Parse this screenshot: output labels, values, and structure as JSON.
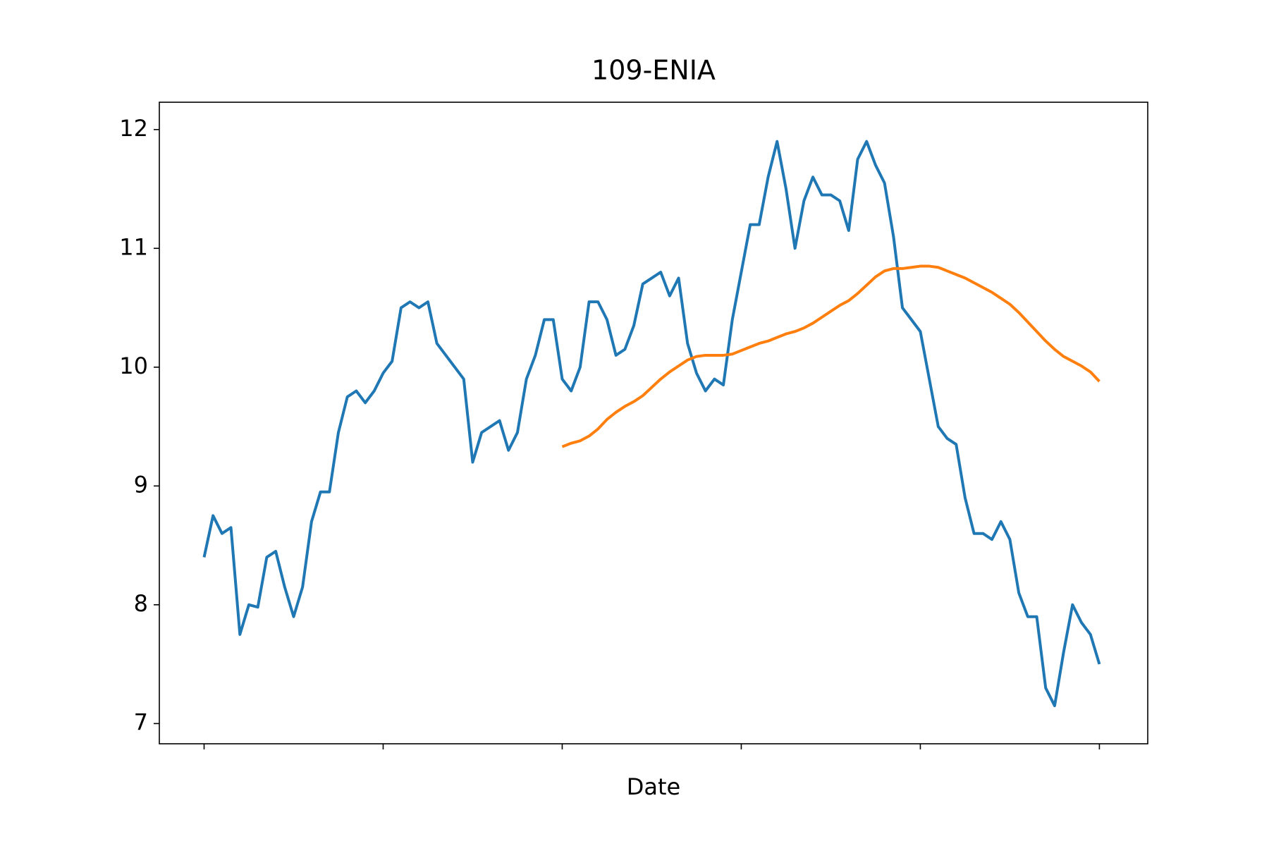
{
  "chart_data": {
    "type": "line",
    "title": "109-ENIA",
    "x_label": "Date",
    "x": [
      0,
      5,
      10,
      15,
      20,
      25,
      30,
      35,
      40,
      45,
      50,
      55,
      60,
      65,
      70,
      75,
      80,
      85,
      90,
      95,
      100,
      105,
      110,
      115,
      120,
      125,
      130,
      135,
      140,
      145,
      150,
      155,
      160,
      165,
      170,
      175,
      180,
      185,
      190,
      195,
      200,
      205,
      210,
      215,
      220,
      225,
      230,
      235,
      240,
      245,
      250,
      255,
      260,
      265,
      270,
      275,
      280,
      285,
      290,
      295,
      300,
      305,
      310,
      315,
      320,
      325,
      330,
      335,
      340,
      345,
      350,
      355,
      360,
      365,
      370,
      375,
      380,
      385,
      390,
      395,
      400,
      405,
      410,
      415,
      420,
      425,
      430,
      435,
      440,
      445,
      450,
      455,
      460,
      465,
      470,
      475,
      480,
      485,
      490,
      495,
      500
    ],
    "series": [
      {
        "color": "#1f77b4",
        "values": [
          8.4,
          8.75,
          8.6,
          8.65,
          7.75,
          8.0,
          7.98,
          8.4,
          8.45,
          8.15,
          7.9,
          8.15,
          8.7,
          8.95,
          8.95,
          9.45,
          9.75,
          9.8,
          9.7,
          9.8,
          9.95,
          10.05,
          10.5,
          10.55,
          10.5,
          10.55,
          10.2,
          10.1,
          10.0,
          9.9,
          9.2,
          9.45,
          9.5,
          9.55,
          9.3,
          9.45,
          9.9,
          10.1,
          10.4,
          10.4,
          9.9,
          9.8,
          10.0,
          10.55,
          10.55,
          10.4,
          10.1,
          10.15,
          10.35,
          10.7,
          10.75,
          10.8,
          10.6,
          10.75,
          10.2,
          9.95,
          9.8,
          9.9,
          9.85,
          10.4,
          10.8,
          11.2,
          11.2,
          11.6,
          11.9,
          11.5,
          11.0,
          11.4,
          11.6,
          11.45,
          11.45,
          11.4,
          11.15,
          11.75,
          11.9,
          11.7,
          11.55,
          11.1,
          10.5,
          10.4,
          10.3,
          9.9,
          9.5,
          9.4,
          9.35,
          8.9,
          8.6,
          8.6,
          8.55,
          8.7,
          8.55,
          8.1,
          7.9,
          7.9,
          7.3,
          7.15,
          7.6,
          8.0,
          7.85,
          7.75,
          7.5
        ]
      },
      {
        "color": "#ff7f0e",
        "values": [
          null,
          null,
          null,
          null,
          null,
          null,
          null,
          null,
          null,
          null,
          null,
          null,
          null,
          null,
          null,
          null,
          null,
          null,
          null,
          null,
          null,
          null,
          null,
          null,
          null,
          null,
          null,
          null,
          null,
          null,
          null,
          null,
          null,
          null,
          null,
          null,
          null,
          null,
          null,
          null,
          9.33,
          9.36,
          9.38,
          9.42,
          9.48,
          9.56,
          9.62,
          9.67,
          9.71,
          9.76,
          9.83,
          9.9,
          9.96,
          10.01,
          10.06,
          10.09,
          10.1,
          10.1,
          10.1,
          10.11,
          10.14,
          10.17,
          10.2,
          10.22,
          10.25,
          10.28,
          10.3,
          10.33,
          10.37,
          10.42,
          10.47,
          10.52,
          10.56,
          10.62,
          10.69,
          10.76,
          10.81,
          10.83,
          10.83,
          10.84,
          10.85,
          10.85,
          10.84,
          10.81,
          10.78,
          10.75,
          10.71,
          10.67,
          10.63,
          10.58,
          10.53,
          10.46,
          10.38,
          10.3,
          10.22,
          10.15,
          10.09,
          10.05,
          10.01,
          9.96,
          9.88
        ]
      }
    ],
    "xlim": [
      -25,
      527
    ],
    "xticks": [
      0,
      100,
      200,
      300,
      400,
      500
    ],
    "ylim": [
      6.83,
      12.23
    ],
    "yticks": [
      7,
      8,
      9,
      10,
      11,
      12
    ]
  }
}
